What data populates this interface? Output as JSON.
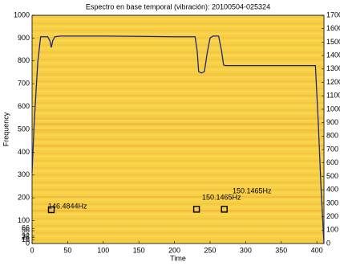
{
  "chart_data": {
    "type": "line",
    "title": "Espectro en base temporal (vibración): 20100504-025324",
    "xlabel": "Time",
    "ylabel": "Frequency",
    "xlim": [
      0,
      410
    ],
    "xticks": [
      0,
      50,
      100,
      150,
      200,
      250,
      300,
      350,
      400
    ],
    "ylim": [
      0,
      1000
    ],
    "yticks": [
      0,
      16,
      26,
      32,
      56,
      66,
      100,
      200,
      300,
      400,
      500,
      600,
      700,
      800,
      900,
      1000
    ],
    "y2lim": [
      0,
      1700
    ],
    "y2ticks": [
      0,
      100,
      200,
      300,
      400,
      500,
      600,
      700,
      800,
      900,
      1000,
      1100,
      1200,
      1300,
      1400,
      1500,
      1600,
      1700
    ],
    "series": [
      {
        "color": "#1a2a80",
        "axis": "y2",
        "x": [
          0,
          3,
          8,
          12,
          22,
          25,
          27,
          29,
          32,
          40,
          100,
          150,
          200,
          229,
          232,
          234,
          238,
          242,
          246,
          250,
          254,
          262,
          266,
          269,
          271,
          300,
          350,
          398,
          402,
          406,
          410
        ],
        "values": [
          527,
          900,
          1350,
          1540,
          1540,
          1510,
          1460,
          1510,
          1540,
          1545,
          1545,
          1543,
          1540,
          1540,
          1430,
          1280,
          1270,
          1280,
          1420,
          1530,
          1545,
          1545,
          1440,
          1330,
          1325,
          1325,
          1325,
          1325,
          900,
          400,
          0
        ]
      }
    ],
    "markers": {
      "color": "#000000",
      "x": [
        27,
        231,
        270
      ],
      "values": [
        148,
        150,
        150
      ]
    },
    "annotations": [
      "146.4844Hz",
      "150.1465Hz",
      "150.1465Hz"
    ]
  }
}
